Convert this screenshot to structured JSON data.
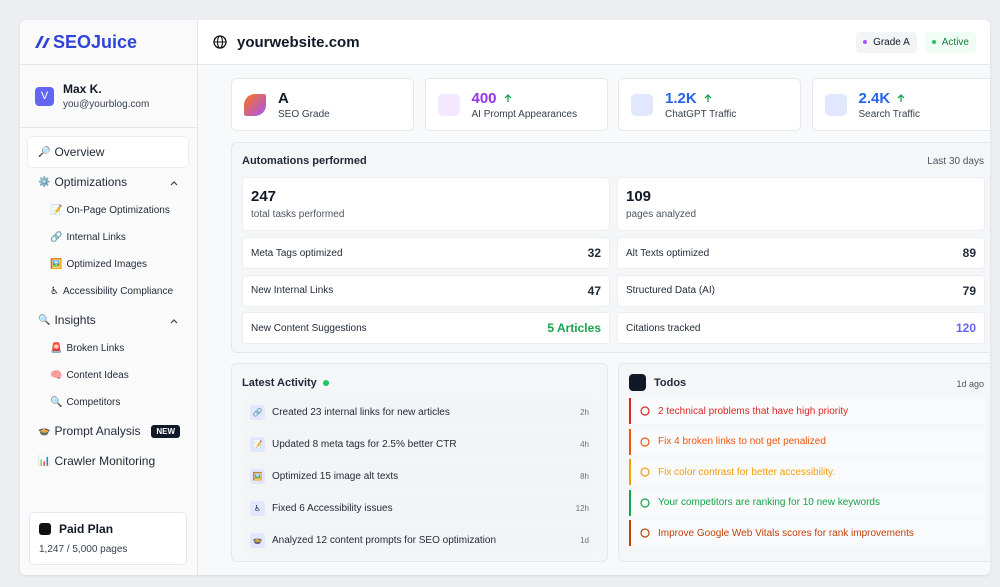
{
  "brand": "SEOJuice",
  "user": {
    "initial": "V",
    "name": "Max K.",
    "email": "you@yourblog.com"
  },
  "nav": [
    {
      "icon": "🔎",
      "label": "Overview"
    },
    {
      "icon": "⚙️",
      "label": "Optimizations",
      "children": [
        {
          "icon": "📝",
          "label": "On-Page Optimizations"
        },
        {
          "icon": "🔗",
          "label": "Internal Links"
        },
        {
          "icon": "🖼️",
          "label": "Optimized Images"
        },
        {
          "icon": "♿",
          "label": "Accessibility Compliance"
        }
      ]
    },
    {
      "icon": "🔍",
      "label": "Insights",
      "children": [
        {
          "icon": "🚨",
          "label": "Broken Links"
        },
        {
          "icon": "🧠",
          "label": "Content Ideas"
        },
        {
          "icon": "🔍",
          "label": "Competitors"
        }
      ]
    },
    {
      "icon": "🍲",
      "label": "Prompt Analysis",
      "badge": "NEW"
    },
    {
      "icon": "📊",
      "label": "Crawler Monitoring"
    }
  ],
  "plan": {
    "title": "Paid Plan",
    "usage": "1,247 / 5,000 pages"
  },
  "header": {
    "site": "yourwebsite.com",
    "badges": [
      {
        "label": "Grade A",
        "color": "#a855f7"
      },
      {
        "label": "Active",
        "color": "#22c55e"
      }
    ]
  },
  "stats": [
    {
      "value": "A",
      "label": "SEO Grade",
      "color": "#111827"
    },
    {
      "value": 400,
      "label": "AI Prompt Appearances",
      "color": "#9333ea"
    },
    {
      "value": "1.2K",
      "label": "ChatGPT Traffic",
      "color": "#2563eb"
    },
    {
      "value": "2.4K",
      "label": "Search Traffic",
      "color": "#2563eb"
    }
  ],
  "automations": {
    "title": "Automations performed",
    "period": "Last 30 days",
    "totals": [
      {
        "value": 247,
        "label": "total tasks performed"
      },
      {
        "value": 109,
        "label": "pages analyzed"
      }
    ],
    "rows": [
      {
        "label": "Meta Tags optimized",
        "value": 32
      },
      {
        "label": "Alt Texts optimized",
        "value": 89
      },
      {
        "label": "New Internal Links",
        "value": 47
      },
      {
        "label": "Structured Data (AI)",
        "value": 79
      },
      {
        "label": "New Content Suggestions",
        "value": "5 Articles",
        "color": "#16a34a"
      },
      {
        "label": "Citations tracked",
        "value": 120,
        "color": "#6366f1"
      }
    ]
  },
  "activity": {
    "title": "Latest Activity",
    "items": [
      {
        "icon": "🔗",
        "text": "Created 23 internal links for new articles",
        "time": "2h"
      },
      {
        "icon": "📝",
        "text": "Updated 8 meta tags for 2.5% better CTR",
        "time": "4h"
      },
      {
        "icon": "🖼️",
        "text": "Optimized 15 image alt texts",
        "time": "8h"
      },
      {
        "icon": "♿",
        "text": "Fixed 6 Accessibility issues",
        "time": "12h"
      },
      {
        "icon": "🍲",
        "text": "Analyzed 12 content prompts for SEO optimization",
        "time": "1d"
      }
    ]
  },
  "todos": {
    "title": "Todos",
    "time": "1d ago",
    "items": [
      {
        "text": "2 technical problems that have high priority",
        "color": "#dc2626"
      },
      {
        "text": "Fix 4 broken links to not get penalized",
        "color": "#ea580c"
      },
      {
        "text": "Fix color contrast for better accessibility.",
        "color": "#f59e0b"
      },
      {
        "text": "Your competitors are ranking for 10 new keywords",
        "color": "#16a34a"
      },
      {
        "text": "Improve Google Web Vitals scores for rank improvements",
        "color": "#c2410c"
      }
    ]
  }
}
